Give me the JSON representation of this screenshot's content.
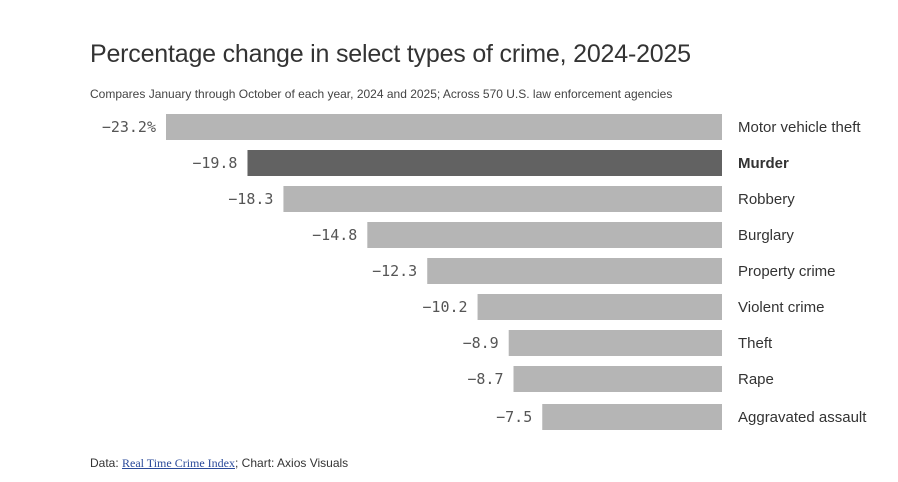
{
  "chart_data": {
    "type": "bar",
    "orientation": "horizontal",
    "title": "Percentage change in select types of crime, 2024-2025",
    "subtitle": "Compares January through October of each year, 2024 and 2025; Across 570 U.S. law enforcement agencies",
    "categories": [
      "Motor vehicle theft",
      "Murder",
      "Robbery",
      "Burglary",
      "Property crime",
      "Violent crime",
      "Theft",
      "Rape",
      "Aggravated assault"
    ],
    "values": [
      -23.2,
      -19.8,
      -18.3,
      -14.8,
      -12.3,
      -10.2,
      -8.9,
      -8.7,
      -7.5
    ],
    "value_labels": [
      "−23.2%",
      "−19.8",
      "−18.3",
      "−14.8",
      "−12.3",
      "−10.2",
      "−8.9",
      "−8.7",
      "−7.5"
    ],
    "highlight": "Murder",
    "colors": {
      "bar": "#b5b5b5",
      "highlight": "#626262"
    },
    "xlim": [
      -23.2,
      0
    ],
    "grid": false,
    "legend": "none"
  },
  "footer": {
    "prefix": "Data: ",
    "link_text": "Real Time Crime Index",
    "suffix": "; Chart: Axios Visuals"
  }
}
